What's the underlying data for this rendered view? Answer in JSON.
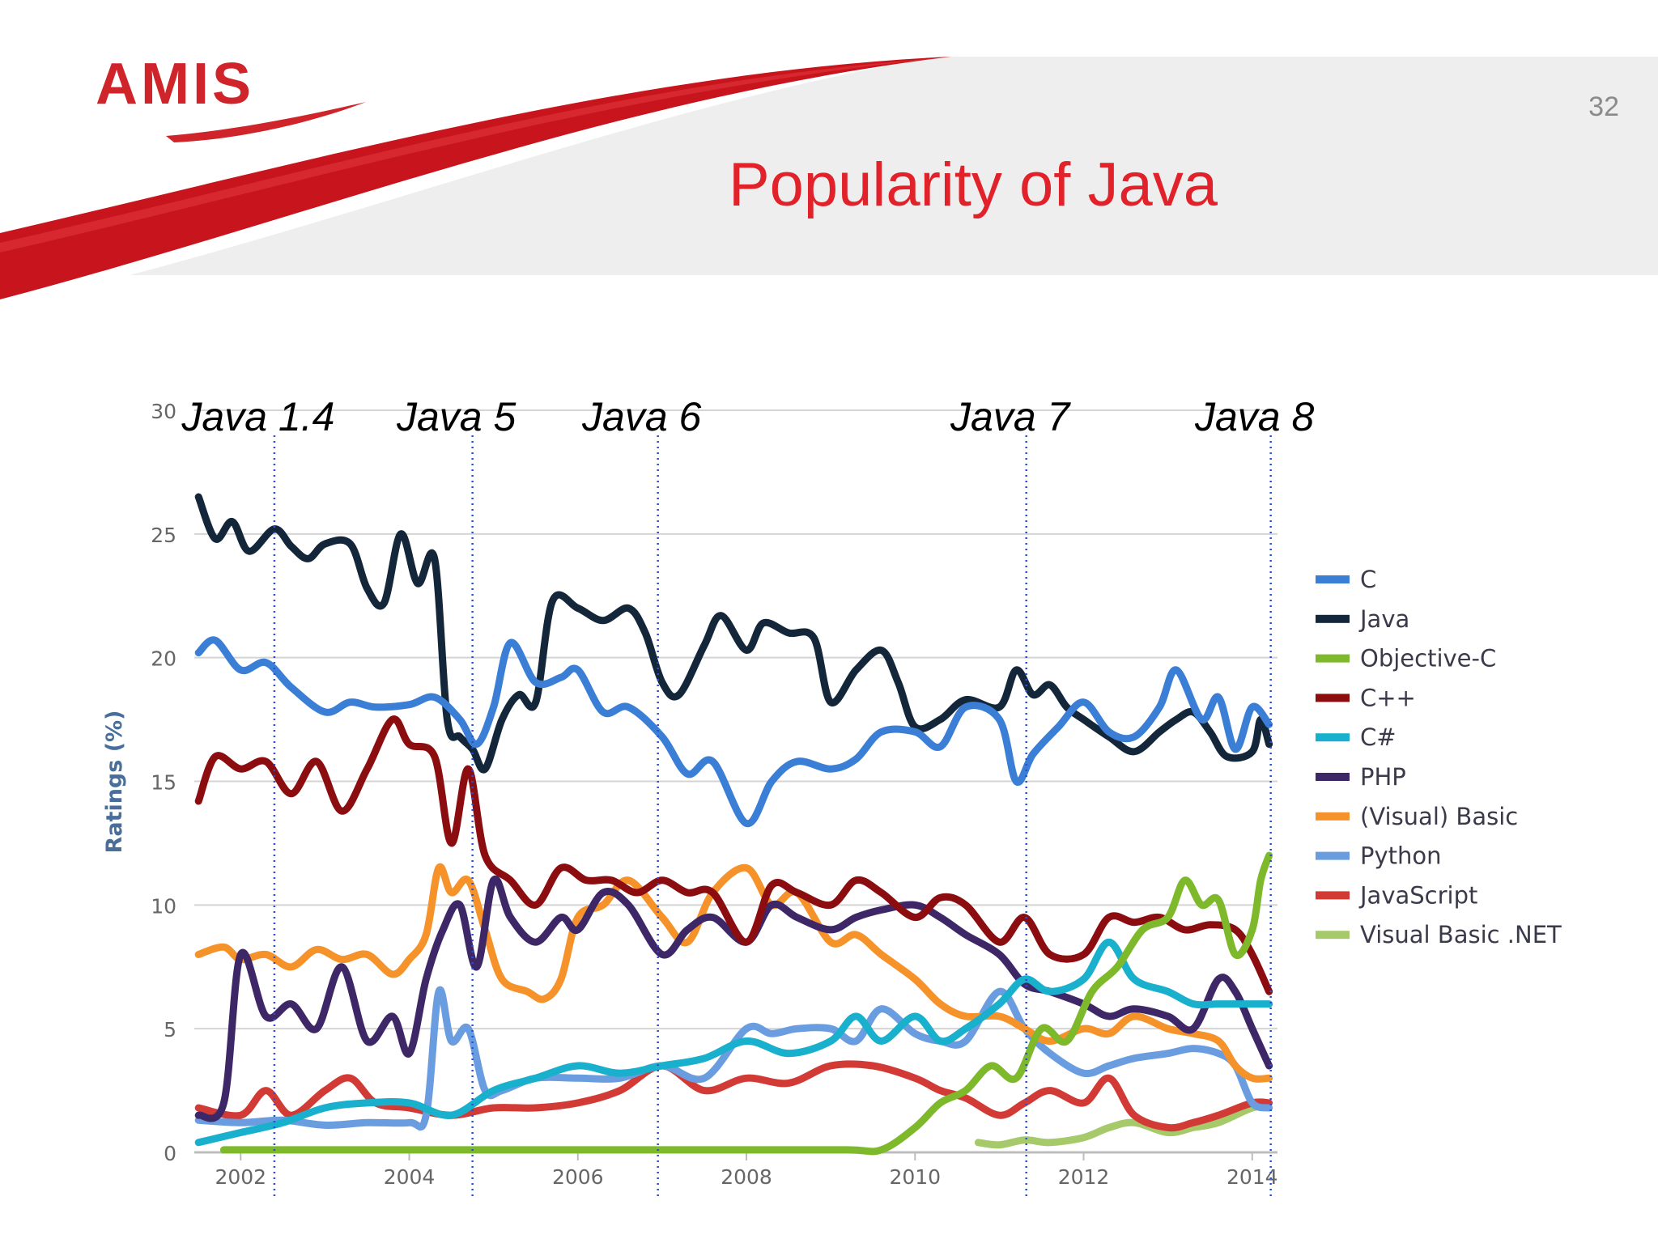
{
  "slide": {
    "logo_text": "AMIS",
    "page_number": "32",
    "title": "Popularity of Java",
    "colors": {
      "title": "#e2222a",
      "logo": "#d0242b",
      "swoosh": "#c8141c",
      "band": "#eeeeee"
    }
  },
  "chart_data": {
    "type": "line",
    "title": "",
    "xlabel": "",
    "ylabel": "Ratings (%)",
    "xlim": [
      2001.45,
      2014.3
    ],
    "ylim": [
      0,
      30
    ],
    "x_ticks": [
      "2002",
      "2004",
      "2006",
      "2008",
      "2010",
      "2012",
      "2014"
    ],
    "y_ticks": [
      "0",
      "5",
      "10",
      "15",
      "20",
      "25",
      "30"
    ],
    "grid": true,
    "legend_position": "right",
    "annotations": [
      {
        "label": "Java 1.4",
        "x": 2002.4
      },
      {
        "label": "Java 5",
        "x": 2004.75
      },
      {
        "label": "Java 6",
        "x": 2006.95
      },
      {
        "label": "Java 7",
        "x": 2011.32
      },
      {
        "label": "Java 8",
        "x": 2014.22
      }
    ],
    "series": [
      {
        "name": "C",
        "color": "#3a7fd5",
        "x": [
          2001.5,
          2001.7,
          2002,
          2002.3,
          2002.6,
          2003,
          2003.3,
          2003.6,
          2004,
          2004.3,
          2004.6,
          2004.8,
          2005,
          2005.2,
          2005.5,
          2005.8,
          2006,
          2006.3,
          2006.6,
          2007,
          2007.3,
          2007.6,
          2008,
          2008.3,
          2008.6,
          2009,
          2009.3,
          2009.6,
          2010,
          2010.3,
          2010.6,
          2011,
          2011.2,
          2011.4,
          2011.7,
          2012,
          2012.3,
          2012.6,
          2012.9,
          2013.1,
          2013.4,
          2013.6,
          2013.8,
          2014,
          2014.2
        ],
        "y": [
          20.2,
          20.7,
          19.5,
          19.8,
          18.8,
          17.8,
          18.2,
          18,
          18.1,
          18.4,
          17.5,
          16.5,
          18,
          20.6,
          19,
          19.2,
          19.5,
          17.8,
          18,
          16.8,
          15.3,
          15.8,
          13.3,
          15,
          15.8,
          15.5,
          15.9,
          17,
          17,
          16.4,
          18,
          17.5,
          15,
          16.1,
          17.2,
          18.2,
          17,
          16.8,
          18,
          19.5,
          17.5,
          18.4,
          16.3,
          18,
          17.3
        ]
      },
      {
        "name": "Java",
        "color": "#13263a",
        "x": [
          2001.5,
          2001.7,
          2001.9,
          2002.1,
          2002.4,
          2002.6,
          2002.8,
          2003,
          2003.3,
          2003.5,
          2003.7,
          2003.9,
          2004.1,
          2004.3,
          2004.45,
          2004.6,
          2004.75,
          2004.9,
          2005.1,
          2005.3,
          2005.5,
          2005.7,
          2006,
          2006.3,
          2006.6,
          2006.8,
          2007,
          2007.2,
          2007.5,
          2007.7,
          2008,
          2008.2,
          2008.5,
          2008.8,
          2009,
          2009.3,
          2009.6,
          2009.8,
          2010,
          2010.3,
          2010.6,
          2011,
          2011.2,
          2011.4,
          2011.6,
          2011.8,
          2012,
          2012.3,
          2012.6,
          2012.9,
          2013.1,
          2013.3,
          2013.5,
          2013.7,
          2014,
          2014.1,
          2014.2
        ],
        "y": [
          26.5,
          24.8,
          25.5,
          24.3,
          25.2,
          24.5,
          24,
          24.6,
          24.6,
          22.8,
          22.2,
          25,
          23,
          24,
          17.5,
          16.8,
          16.3,
          15.5,
          17.5,
          18.5,
          18.2,
          22.3,
          22,
          21.5,
          22,
          21,
          19,
          18.5,
          20.5,
          21.7,
          20.3,
          21.4,
          21,
          20.8,
          18.2,
          19.5,
          20.3,
          19,
          17.2,
          17.5,
          18.3,
          18,
          19.5,
          18.5,
          18.9,
          18,
          17.5,
          16.8,
          16.2,
          17,
          17.5,
          17.8,
          17,
          16,
          16.2,
          17.5,
          16.5
        ]
      },
      {
        "name": "Objective-C",
        "color": "#7db92a",
        "x": [
          2001.8,
          2004,
          2006,
          2008,
          2009.2,
          2009.6,
          2010,
          2010.3,
          2010.6,
          2010.9,
          2011.2,
          2011.5,
          2011.8,
          2012.1,
          2012.4,
          2012.7,
          2013,
          2013.2,
          2013.4,
          2013.6,
          2013.8,
          2014,
          2014.1,
          2014.2
        ],
        "y": [
          0.1,
          0.1,
          0.1,
          0.1,
          0.1,
          0.1,
          1,
          2,
          2.5,
          3.5,
          3,
          5,
          4.5,
          6.5,
          7.5,
          9,
          9.5,
          11,
          10,
          10.2,
          8,
          9,
          11,
          12
        ]
      },
      {
        "name": "C++",
        "color": "#8b0d10",
        "x": [
          2001.5,
          2001.7,
          2002,
          2002.3,
          2002.6,
          2002.9,
          2003.2,
          2003.5,
          2003.8,
          2004,
          2004.3,
          2004.5,
          2004.7,
          2004.9,
          2005.2,
          2005.5,
          2005.8,
          2006.1,
          2006.4,
          2006.7,
          2007,
          2007.3,
          2007.6,
          2008,
          2008.3,
          2008.6,
          2009,
          2009.3,
          2009.6,
          2010,
          2010.3,
          2010.6,
          2011,
          2011.3,
          2011.6,
          2012,
          2012.3,
          2012.6,
          2012.9,
          2013.2,
          2013.5,
          2013.8,
          2014,
          2014.2
        ],
        "y": [
          14.2,
          16,
          15.5,
          15.8,
          14.5,
          15.8,
          13.8,
          15.5,
          17.5,
          16.5,
          16,
          12.5,
          15.5,
          12,
          11,
          10,
          11.5,
          11,
          11,
          10.5,
          11,
          10.5,
          10.5,
          8.5,
          10.8,
          10.5,
          10,
          11,
          10.5,
          9.5,
          10.3,
          10,
          8.5,
          9.5,
          8,
          8,
          9.5,
          9.3,
          9.5,
          9,
          9.2,
          9,
          8,
          6.5
        ]
      },
      {
        "name": "C#",
        "color": "#18b0cc",
        "x": [
          2001.5,
          2002,
          2002.5,
          2003,
          2003.5,
          2004,
          2004.5,
          2005,
          2005.5,
          2006,
          2006.5,
          2007,
          2007.5,
          2008,
          2008.5,
          2009,
          2009.3,
          2009.6,
          2010,
          2010.3,
          2010.6,
          2011,
          2011.3,
          2011.6,
          2012,
          2012.3,
          2012.6,
          2013,
          2013.3,
          2013.6,
          2014,
          2014.2
        ],
        "y": [
          0.4,
          0.8,
          1.2,
          1.8,
          2,
          2,
          1.5,
          2.5,
          3,
          3.5,
          3.2,
          3.5,
          3.8,
          4.5,
          4,
          4.5,
          5.5,
          4.5,
          5.5,
          4.5,
          5,
          6,
          7,
          6.5,
          7,
          8.5,
          7,
          6.5,
          6,
          6,
          6,
          6
        ]
      },
      {
        "name": "PHP",
        "color": "#3e2767",
        "x": [
          2001.5,
          2001.8,
          2002,
          2002.3,
          2002.6,
          2002.9,
          2003.2,
          2003.5,
          2003.8,
          2004,
          2004.2,
          2004.4,
          2004.6,
          2004.8,
          2005,
          2005.2,
          2005.5,
          2005.8,
          2006,
          2006.3,
          2006.6,
          2007,
          2007.3,
          2007.6,
          2008,
          2008.3,
          2008.6,
          2009,
          2009.3,
          2009.6,
          2010,
          2010.3,
          2010.6,
          2011,
          2011.3,
          2011.6,
          2012,
          2012.3,
          2012.6,
          2013,
          2013.3,
          2013.6,
          2013.8,
          2014,
          2014.2
        ],
        "y": [
          1.5,
          2,
          8,
          5.5,
          6,
          5,
          7.5,
          4.5,
          5.5,
          4,
          7,
          9,
          10,
          7.5,
          11,
          9.5,
          8.5,
          9.5,
          9,
          10.5,
          10,
          8,
          9,
          9.5,
          8.5,
          10,
          9.5,
          9,
          9.5,
          9.8,
          10,
          9.5,
          8.8,
          8,
          6.8,
          6.5,
          6,
          5.5,
          5.8,
          5.5,
          5,
          7,
          6.5,
          5,
          3.5
        ]
      },
      {
        "name": "(Visual) Basic",
        "color": "#f6922a",
        "x": [
          2001.5,
          2001.8,
          2002,
          2002.3,
          2002.6,
          2002.9,
          2003.2,
          2003.5,
          2003.8,
          2004,
          2004.2,
          2004.35,
          2004.5,
          2004.7,
          2004.9,
          2005.1,
          2005.4,
          2005.6,
          2005.8,
          2006,
          2006.3,
          2006.6,
          2007,
          2007.3,
          2007.6,
          2008,
          2008.3,
          2008.6,
          2009,
          2009.3,
          2009.6,
          2010,
          2010.3,
          2010.6,
          2011,
          2011.3,
          2011.6,
          2012,
          2012.3,
          2012.6,
          2013,
          2013.3,
          2013.6,
          2013.8,
          2014,
          2014.2
        ],
        "y": [
          8,
          8.3,
          7.8,
          8,
          7.5,
          8.2,
          7.8,
          8,
          7.2,
          7.8,
          8.8,
          11.5,
          10.5,
          11,
          9,
          7,
          6.5,
          6.2,
          7,
          9.5,
          10,
          11,
          9.5,
          8.5,
          10.5,
          11.5,
          10,
          10.5,
          8.5,
          8.8,
          8,
          7,
          6,
          5.5,
          5.5,
          5,
          4.5,
          5,
          4.8,
          5.5,
          5,
          4.8,
          4.5,
          3.5,
          3,
          3
        ]
      },
      {
        "name": "Python",
        "color": "#6a9de0",
        "x": [
          2001.5,
          2002,
          2002.5,
          2003,
          2003.5,
          2004,
          2004.2,
          2004.35,
          2004.5,
          2004.7,
          2004.9,
          2005.1,
          2005.5,
          2006,
          2006.5,
          2007,
          2007.5,
          2008,
          2008.3,
          2008.6,
          2009,
          2009.3,
          2009.6,
          2010,
          2010.3,
          2010.6,
          2011,
          2011.3,
          2011.6,
          2012,
          2012.3,
          2012.6,
          2013,
          2013.3,
          2013.6,
          2013.8,
          2014,
          2014.2
        ],
        "y": [
          1.3,
          1.2,
          1.3,
          1.1,
          1.2,
          1.2,
          1.5,
          6.5,
          4.5,
          5,
          2.5,
          2.5,
          3,
          3,
          3,
          3.5,
          3,
          5,
          4.8,
          5,
          5,
          4.5,
          5.8,
          4.8,
          4.5,
          4.5,
          6.5,
          5,
          4,
          3.2,
          3.5,
          3.8,
          4,
          4.2,
          4,
          3.5,
          2,
          1.8
        ]
      },
      {
        "name": "JavaScript",
        "color": "#d23a35",
        "x": [
          2001.5,
          2002,
          2002.3,
          2002.6,
          2003,
          2003.3,
          2003.6,
          2004,
          2004.5,
          2005,
          2005.5,
          2006,
          2006.5,
          2007,
          2007.5,
          2008,
          2008.5,
          2009,
          2009.5,
          2010,
          2010.3,
          2010.6,
          2011,
          2011.3,
          2011.6,
          2012,
          2012.3,
          2012.6,
          2013,
          2013.3,
          2013.6,
          2014,
          2014.2
        ],
        "y": [
          1.8,
          1.5,
          2.5,
          1.5,
          2.5,
          3,
          2,
          1.8,
          1.5,
          1.8,
          1.8,
          2,
          2.5,
          3.5,
          2.5,
          3,
          2.8,
          3.5,
          3.5,
          3,
          2.5,
          2.2,
          1.5,
          2,
          2.5,
          2,
          3,
          1.5,
          1,
          1.2,
          1.5,
          2,
          2
        ]
      },
      {
        "name": "Visual Basic .NET",
        "color": "#a6c96a",
        "x": [
          2010.75,
          2011,
          2011.3,
          2011.6,
          2012,
          2012.3,
          2012.6,
          2013,
          2013.3,
          2013.6,
          2014,
          2014.2
        ],
        "y": [
          0.4,
          0.3,
          0.5,
          0.4,
          0.6,
          1,
          1.2,
          0.8,
          1,
          1.2,
          1.8,
          1.8
        ]
      }
    ]
  }
}
